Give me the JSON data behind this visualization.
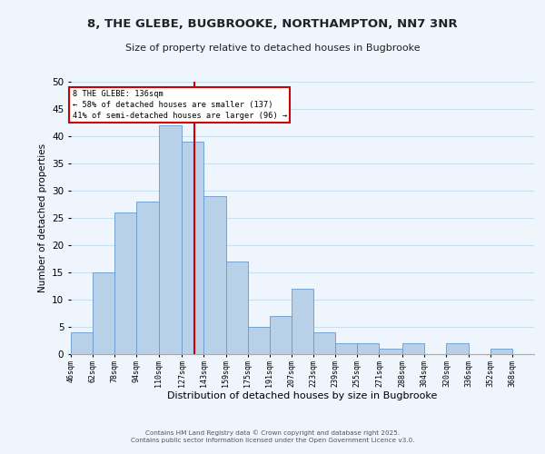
{
  "title": "8, THE GLEBE, BUGBROOKE, NORTHAMPTON, NN7 3NR",
  "subtitle": "Size of property relative to detached houses in Bugbrooke",
  "xlabel": "Distribution of detached houses by size in Bugbrooke",
  "ylabel": "Number of detached properties",
  "bin_labels": [
    "46sqm",
    "62sqm",
    "78sqm",
    "94sqm",
    "110sqm",
    "127sqm",
    "143sqm",
    "159sqm",
    "175sqm",
    "191sqm",
    "207sqm",
    "223sqm",
    "239sqm",
    "255sqm",
    "271sqm",
    "288sqm",
    "304sqm",
    "320sqm",
    "336sqm",
    "352sqm",
    "368sqm"
  ],
  "bin_edges": [
    46,
    62,
    78,
    94,
    110,
    127,
    143,
    159,
    175,
    191,
    207,
    223,
    239,
    255,
    271,
    288,
    304,
    320,
    336,
    352,
    368
  ],
  "bar_heights": [
    4,
    15,
    26,
    28,
    42,
    39,
    29,
    17,
    5,
    7,
    12,
    4,
    2,
    2,
    1,
    2,
    0,
    2,
    0,
    1,
    0
  ],
  "bar_color": "#b8d0e8",
  "bar_edge_color": "#6699cc",
  "grid_color": "#c8dff0",
  "vline_x": 136,
  "vline_color": "#cc0000",
  "ylim": [
    0,
    50
  ],
  "yticks": [
    0,
    5,
    10,
    15,
    20,
    25,
    30,
    35,
    40,
    45,
    50
  ],
  "annotation_title": "8 THE GLEBE: 136sqm",
  "annotation_line1": "← 58% of detached houses are smaller (137)",
  "annotation_line2": "41% of semi-detached houses are larger (96) →",
  "footer_line1": "Contains HM Land Registry data © Crown copyright and database right 2025.",
  "footer_line2": "Contains public sector information licensed under the Open Government Licence v3.0.",
  "bg_color": "#eef5fc"
}
